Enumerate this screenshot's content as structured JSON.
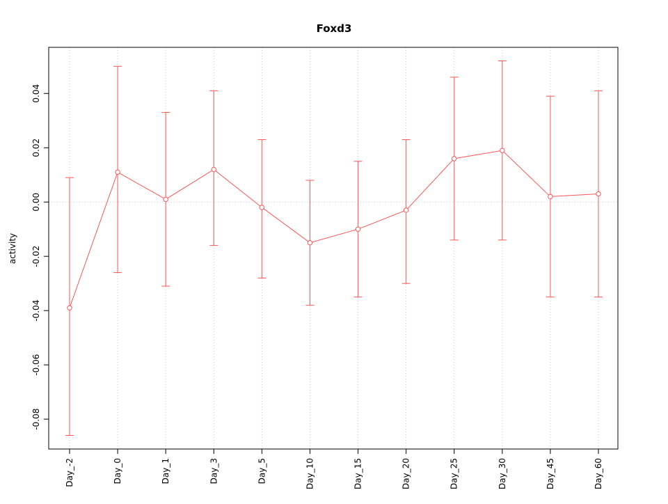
{
  "chart_data": {
    "type": "line",
    "title": "Foxd3",
    "xlabel": "",
    "ylabel": "activity",
    "categories": [
      "Day_-2",
      "Day_0",
      "Day_1",
      "Day_3",
      "Day_5",
      "Day_10",
      "Day_15",
      "Day_20",
      "Day_25",
      "Day_30",
      "Day_45",
      "Day_60"
    ],
    "series": [
      {
        "name": "activity",
        "values": [
          -0.039,
          0.011,
          0.001,
          0.012,
          -0.002,
          -0.015,
          -0.01,
          -0.003,
          0.016,
          0.019,
          0.002,
          0.003
        ],
        "error_low": [
          -0.086,
          -0.026,
          -0.031,
          -0.016,
          -0.028,
          -0.038,
          -0.035,
          -0.03,
          -0.014,
          -0.014,
          -0.035,
          -0.035
        ],
        "error_high": [
          0.009,
          0.05,
          0.033,
          0.041,
          0.023,
          0.008,
          0.015,
          0.023,
          0.046,
          0.052,
          0.039,
          0.041
        ]
      }
    ],
    "ylim": [
      -0.091,
      0.057
    ],
    "yticks": [
      0.04,
      0.02,
      0.0,
      -0.02,
      -0.04,
      -0.06,
      -0.08
    ],
    "reference_line_y": 0,
    "grid": "vertical-dotted-per-category",
    "legend": "none",
    "marker": "open-circle",
    "series_color": "#ff5555",
    "grid_color": "#c9c9c9",
    "axis_color": "#000000",
    "background_color": "#ffffff"
  }
}
